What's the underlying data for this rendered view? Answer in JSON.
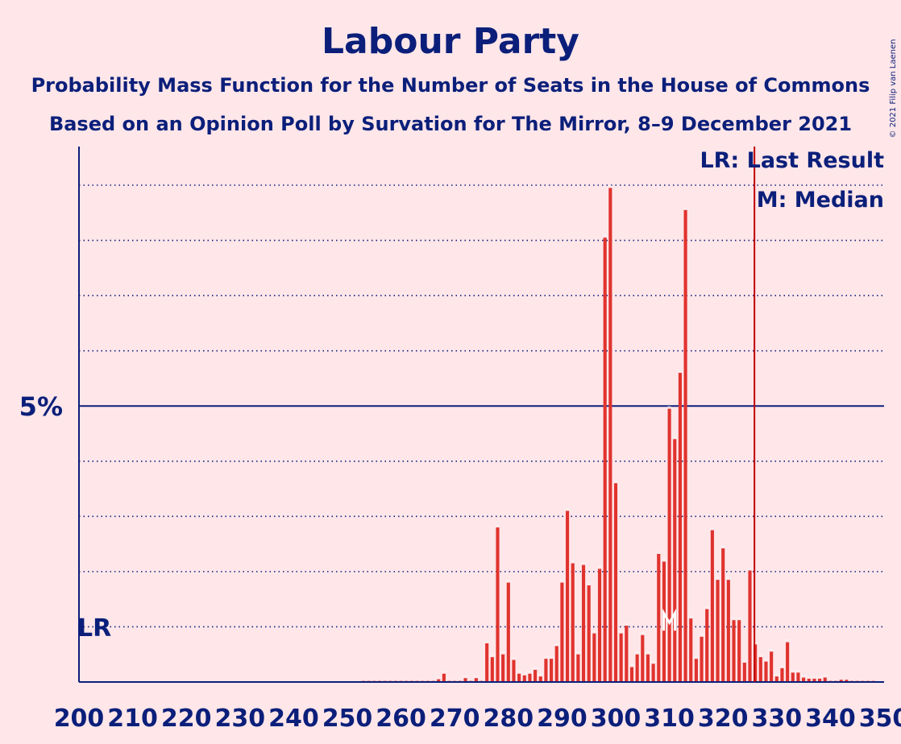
{
  "header": {
    "title": "Labour Party",
    "subtitle1": "Probability Mass Function for the Number of Seats in the House of Commons",
    "subtitle2": "Based on an Opinion Poll by Survation for The Mirror, 8–9 December 2021",
    "copyright": "© 2021 Filip van Laenen"
  },
  "legend": {
    "lr": "LR: Last Result",
    "m": "M: Median"
  },
  "markers": {
    "lr_label": "LR",
    "m_label": "M",
    "last_result_seat": 326,
    "median_seat": 310
  },
  "colors": {
    "background": "#ffe6e9",
    "bar": "#e0332e",
    "text": "#0b1f7a",
    "lr_line": "#c00000"
  },
  "chart_data": {
    "type": "bar",
    "title": "Labour Party",
    "xlabel": "",
    "ylabel": "",
    "xlim": [
      200,
      350
    ],
    "ylim": [
      0,
      9.7
    ],
    "x_ticks": [
      200,
      210,
      220,
      230,
      240,
      250,
      260,
      270,
      280,
      290,
      300,
      310,
      320,
      330,
      340,
      350
    ],
    "y_ticks": [
      {
        "value": 5,
        "label": "5%"
      }
    ],
    "y_gridlines": [
      1,
      2,
      3,
      4,
      5,
      6,
      7,
      8,
      9
    ],
    "seats": [
      200,
      201,
      202,
      203,
      204,
      205,
      206,
      207,
      208,
      209,
      210,
      211,
      212,
      213,
      214,
      215,
      216,
      217,
      218,
      219,
      220,
      221,
      222,
      223,
      224,
      225,
      226,
      227,
      228,
      229,
      230,
      231,
      232,
      233,
      234,
      235,
      236,
      237,
      238,
      239,
      240,
      241,
      242,
      243,
      244,
      245,
      246,
      247,
      248,
      249,
      250,
      251,
      252,
      253,
      254,
      255,
      256,
      257,
      258,
      259,
      260,
      261,
      262,
      263,
      264,
      265,
      266,
      267,
      268,
      269,
      270,
      271,
      272,
      273,
      274,
      275,
      276,
      277,
      278,
      279,
      280,
      281,
      282,
      283,
      284,
      285,
      286,
      287,
      288,
      289,
      290,
      291,
      292,
      293,
      294,
      295,
      296,
      297,
      298,
      299,
      300,
      301,
      302,
      303,
      304,
      305,
      306,
      307,
      308,
      309,
      310,
      311,
      312,
      313,
      314,
      315,
      316,
      317,
      318,
      319,
      320,
      321,
      322,
      323,
      324,
      325,
      326,
      327,
      328,
      329,
      330,
      331,
      332,
      333,
      334,
      335,
      336,
      337,
      338,
      339,
      340,
      341,
      342,
      343,
      344,
      345,
      346,
      347,
      348,
      349,
      350
    ],
    "values": [
      0,
      0,
      0,
      0,
      0,
      0,
      0,
      0,
      0,
      0,
      0,
      0,
      0,
      0,
      0,
      0,
      0,
      0,
      0,
      0,
      0,
      0,
      0,
      0,
      0,
      0,
      0,
      0,
      0,
      0,
      0,
      0,
      0,
      0,
      0,
      0,
      0,
      0,
      0,
      0,
      0,
      0,
      0,
      0,
      0,
      0,
      0,
      0,
      0,
      0,
      0,
      0,
      0,
      0.02,
      0.02,
      0.02,
      0.02,
      0.02,
      0.02,
      0.02,
      0.02,
      0.02,
      0.02,
      0.02,
      0.02,
      0.02,
      0.02,
      0.05,
      0.15,
      0.02,
      0.02,
      0.02,
      0.07,
      0.02,
      0.07,
      0.02,
      0.7,
      0.45,
      2.8,
      0.5,
      1.8,
      0.4,
      0.15,
      0.12,
      0.15,
      0.22,
      0.1,
      0.42,
      0.42,
      0.65,
      1.8,
      3.1,
      2.15,
      0.5,
      2.12,
      1.75,
      0.88,
      2.05,
      8.05,
      8.95,
      3.6,
      0.88,
      1.02,
      0.27,
      0.5,
      0.85,
      0.5,
      0.33,
      2.32,
      2.18,
      4.95,
      4.4,
      5.6,
      8.55,
      1.15,
      0.42,
      0.82,
      1.32,
      2.75,
      1.85,
      2.42,
      1.85,
      1.12,
      1.12,
      0.35,
      2.02,
      0.68,
      0.45,
      0.37,
      0.55,
      0.1,
      0.25,
      0.72,
      0.17,
      0.17,
      0.08,
      0.06,
      0.06,
      0.06,
      0.08,
      0.02,
      0.02,
      0.04,
      0.04,
      0.02,
      0.02,
      0.02,
      0.02,
      0.02,
      0,
      0
    ],
    "data_labels": [
      "0%",
      "0%",
      "0%",
      "0%",
      "0%",
      "0%",
      "0%",
      "0%",
      "0%",
      "0%",
      "0%",
      "0%",
      "0%",
      "0%",
      "0%",
      "0%",
      "0%",
      "0%",
      "0%",
      "0%",
      "0%",
      "0%",
      "0%",
      "0%",
      "0%",
      "0%",
      "0%",
      "0%",
      "0%",
      "0%",
      "0%",
      "0%",
      "0%",
      "0%",
      "0%",
      "0%",
      "0%",
      "0%",
      "0%",
      "0%",
      "0%",
      "0%",
      "0%",
      "0%",
      "0%",
      "0%",
      "0%",
      "0%",
      "0%",
      "0%",
      "0%",
      "0%",
      "0%",
      "0%",
      "0%",
      "0%",
      "0%",
      "0%",
      "0%",
      "0%",
      "0%",
      "0%",
      "0%",
      "0%",
      "0%",
      "0%",
      "0%",
      "0.1%",
      "0.1%",
      "0%",
      "0%",
      "0%",
      "0.1%",
      "0%",
      "0.1%",
      "0%",
      "0.7%",
      "0.4%",
      "3%",
      "0.5%",
      "2%",
      "0.4%",
      "0.1%",
      "0.1%",
      "0.1%",
      "0.2%",
      "0.1%",
      "0.4%",
      "0.4%",
      "0.6%",
      "2%",
      "3%",
      "2%",
      "0.5%",
      "2%",
      "2%",
      "0.9%",
      "2%",
      "8%",
      "9%",
      "4%",
      "0.9%",
      "1.0%",
      "0.3%",
      "0.5%",
      "0.8%",
      "0.5%",
      "0.3%",
      "2%",
      "2%",
      "5%",
      "4%",
      "6%",
      "9%",
      "1.1%",
      "0.4%",
      "0.8%",
      "1.3%",
      "3%",
      "2%",
      "2%",
      "2%",
      "1.1%",
      "1.1%",
      "0.3%",
      "2%",
      "0.7%",
      "0.4%",
      "0.4%",
      "0.5%",
      "0.1%",
      "0.2%",
      "0.7%",
      "0.2%",
      "0.2%",
      "0.1%",
      "0.1%",
      "0.1%",
      "0.1%",
      "0.1%",
      "0%",
      "0%",
      "0%",
      "0%",
      "0%",
      "0%",
      "0%",
      "0%",
      "0%",
      "0%",
      "0%"
    ]
  }
}
